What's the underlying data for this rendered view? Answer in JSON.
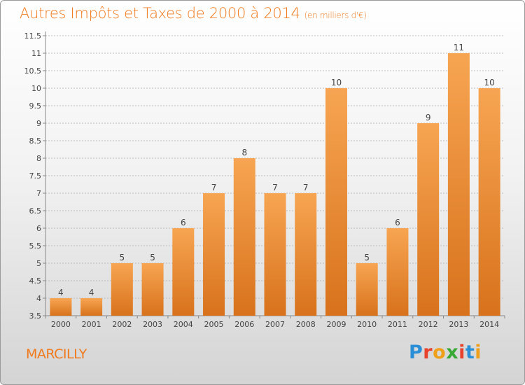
{
  "header": {
    "title": "Autres Impôts et Taxes de 2000 à 2014",
    "unit_note": "(en milliers d'€)"
  },
  "footer": {
    "commune": "MARCILLY",
    "logo_text": "Proxiti",
    "logo_colors": [
      "#2a8fd6",
      "#e8412c",
      "#f0a018",
      "#39a935",
      "#e8412c",
      "#2a8fd6",
      "#f0a018"
    ]
  },
  "colors": {
    "accent": "#f07a1c",
    "bar_top": "#f7a552",
    "bar_bottom": "#d8721c",
    "grid": "#bbbbbb",
    "text": "#444444"
  },
  "chart_data": {
    "type": "bar",
    "title": "Autres Impôts et Taxes de 2000 à 2014",
    "xlabel": "",
    "ylabel": "",
    "categories": [
      "2000",
      "2001",
      "2002",
      "2003",
      "2004",
      "2005",
      "2006",
      "2007",
      "2008",
      "2009",
      "2010",
      "2011",
      "2012",
      "2013",
      "2014"
    ],
    "values": [
      4,
      4,
      5,
      5,
      6,
      7,
      8,
      7,
      7,
      10,
      5,
      6,
      9,
      11,
      10
    ],
    "data_labels": [
      "4",
      "4",
      "5",
      "5",
      "6",
      "7",
      "8",
      "7",
      "7",
      "10",
      "5",
      "6",
      "9",
      "11",
      "10"
    ],
    "ylim": [
      3.5,
      11.5
    ],
    "yticks": [
      "3.5",
      "4",
      "4.5",
      "5",
      "5.5",
      "6",
      "6.5",
      "7",
      "7.5",
      "8",
      "8.5",
      "9",
      "9.5",
      "10",
      "10.5",
      "11",
      "11.5"
    ],
    "grid": true
  }
}
